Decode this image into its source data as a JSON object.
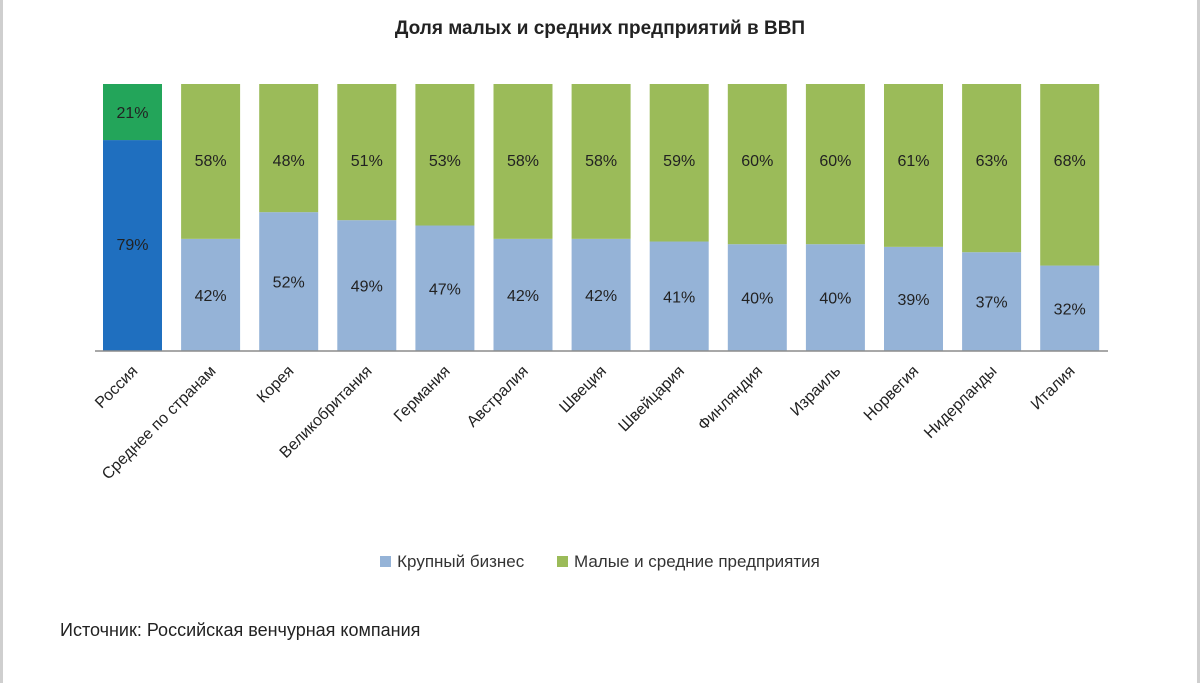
{
  "colors": {
    "large": "#95b3d7",
    "sme": "#9bbb59",
    "large_highlight": "#1f6fbf",
    "sme_highlight": "#23a55a",
    "highlight_text": "#1a1a1a"
  },
  "legend": {
    "large_label": "Крупный бизнес",
    "sme_label": "Малые и средние предприятия"
  },
  "source": "Источник: Российская венчурная компания",
  "chart_data": {
    "type": "bar",
    "stacked": true,
    "title": "Доля малых и средних предприятий в ВВП",
    "xlabel": "",
    "ylabel": "",
    "ylim": [
      0,
      100
    ],
    "legend_position": "bottom",
    "grid": false,
    "categories": [
      "Россия",
      "Среднее по странам",
      "Корея",
      "Великобритания",
      "Германия",
      "Австралия",
      "Швеция",
      "Швейцария",
      "Финляндия",
      "Израиль",
      "Норвегия",
      "Нидерланды",
      "Италия"
    ],
    "series": [
      {
        "name": "Крупный бизнес",
        "values": [
          79,
          42,
          52,
          49,
          47,
          42,
          42,
          41,
          40,
          40,
          39,
          37,
          32
        ],
        "labels": [
          "79%",
          "42%",
          "52%",
          "49%",
          "47%",
          "42%",
          "42%",
          "41%",
          "40%",
          "40%",
          "39%",
          "37%",
          "32%"
        ]
      },
      {
        "name": "Малые и средние предприятия",
        "values": [
          21,
          58,
          48,
          51,
          53,
          58,
          58,
          59,
          60,
          60,
          61,
          63,
          68
        ],
        "labels": [
          "21%",
          "58%",
          "48%",
          "51%",
          "53%",
          "58%",
          "58%",
          "59%",
          "60%",
          "60%",
          "61%",
          "63%",
          "68%"
        ]
      }
    ],
    "highlight_category": "Россия"
  }
}
